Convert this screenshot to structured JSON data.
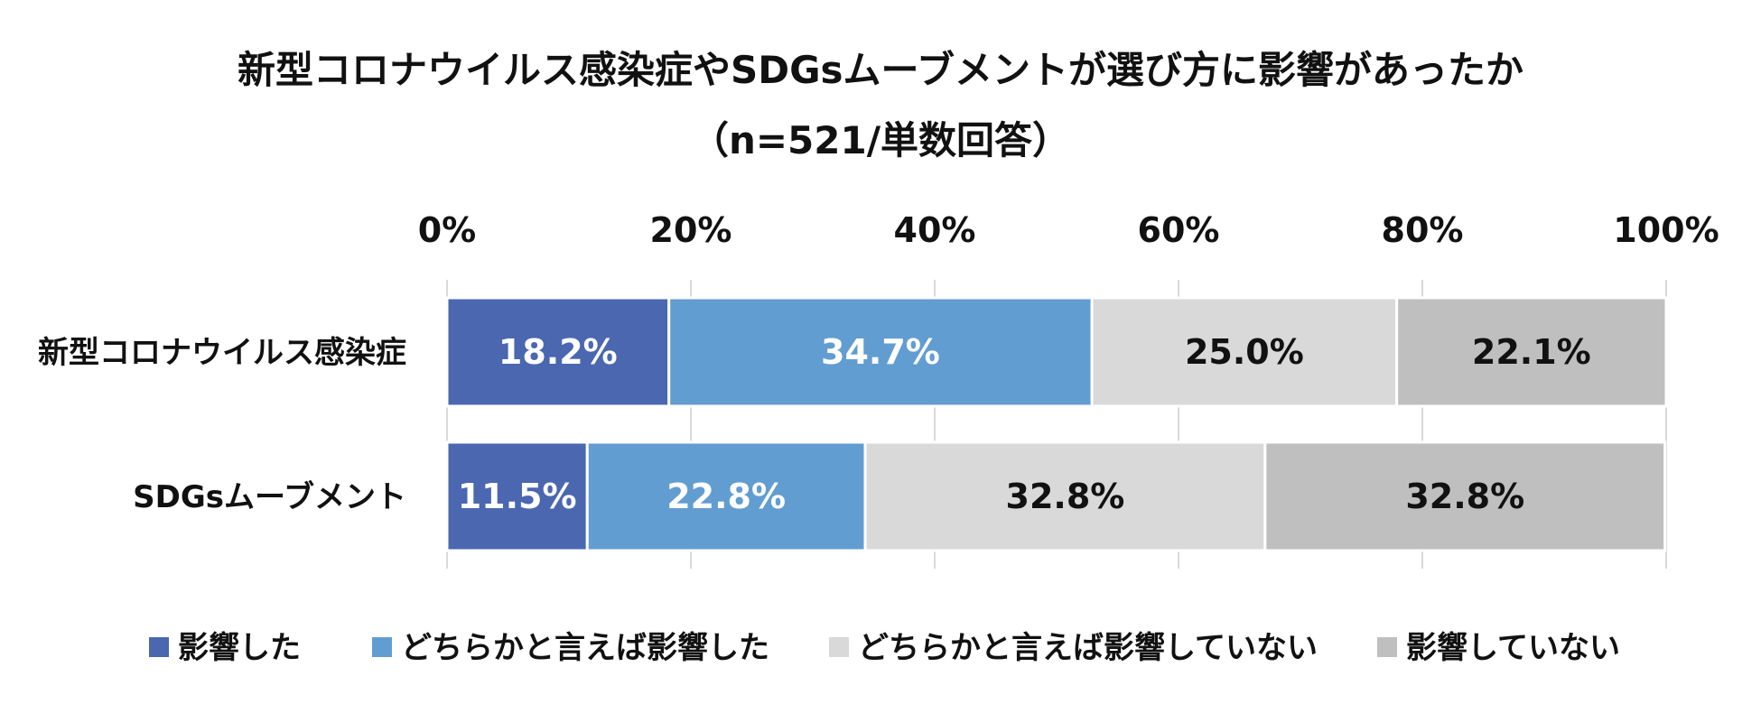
{
  "chart_data": {
    "type": "bar",
    "orientation": "horizontal",
    "stacked": true,
    "title": "新型コロナウイルス感染症やSDGsムーブメントが選び方に影響があったか",
    "subtitle": "（n=521/単数回答）",
    "categories": [
      "新型コロナウイルス感染症",
      "SDGsムーブメント"
    ],
    "series": [
      {
        "name": "影響した",
        "values": [
          18.2,
          11.5
        ],
        "labels": [
          "18.2%",
          "11.5%"
        ],
        "color": "#4a67b0",
        "text_color": "#ffffff"
      },
      {
        "name": "どちらかと言えば影響した",
        "values": [
          34.7,
          22.8
        ],
        "labels": [
          "34.7%",
          "22.8%"
        ],
        "color": "#629dd1",
        "text_color": "#ffffff"
      },
      {
        "name": "どちらかと言えば影響していない",
        "values": [
          25.0,
          32.8
        ],
        "labels": [
          "25.0%",
          "32.8%"
        ],
        "color": "#d9d9d9",
        "text_color": "#111111"
      },
      {
        "name": "影響していない",
        "values": [
          22.1,
          32.8
        ],
        "labels": [
          "22.1%",
          "32.8%"
        ],
        "color": "#bfbfbf",
        "text_color": "#111111"
      }
    ],
    "xlim": [
      0,
      100
    ],
    "xticks": [
      0,
      20,
      40,
      60,
      80,
      100
    ],
    "xtick_labels": [
      "0%",
      "20%",
      "40%",
      "60%",
      "80%",
      "100%"
    ],
    "axis_position": "top",
    "grid": true,
    "legend_position": "bottom"
  }
}
